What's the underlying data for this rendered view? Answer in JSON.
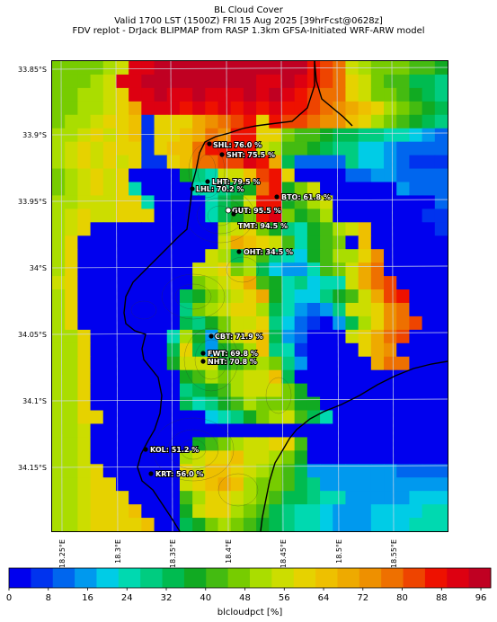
{
  "header": {
    "line1": "BL Cloud Cover",
    "line2": "Valid 1700 LST (1500Z) FRI 15 Aug 2025 [39hrFcst@0628z]",
    "line3": "FDV replot - DrJack BLIPMAP from RASP 1.3km GFSA-Initiated WRF-ARW model"
  },
  "map": {
    "lat_ticks": [
      "33.85°S",
      "33.9°S",
      "33.95°S",
      "34°S",
      "34.05°S",
      "34.1°S",
      "34.15°S"
    ],
    "lon_ticks": [
      "18.25°E",
      "18.3°E",
      "18.35°E",
      "18.4°E",
      "18.45°E",
      "18.5°E",
      "18.55°E"
    ],
    "stations": [
      {
        "label": "SHL: 76.0 %",
        "value": 76.0
      },
      {
        "label": "SHT: 75.5 %",
        "value": 75.5
      },
      {
        "label": "LHT: 79.5 %",
        "value": 79.5
      },
      {
        "label": "LHL: 70.2 %",
        "value": 70.2
      },
      {
        "label": "BTO: 61.8 %",
        "value": 61.8
      },
      {
        "label": "GUT: 95.5 %",
        "value": 95.5
      },
      {
        "label": "TMT: 94.5 %",
        "value": 94.5
      },
      {
        "label": "OHT: 34.5 %",
        "value": 34.5
      },
      {
        "label": "CBT: 71.9 %",
        "value": 71.9
      },
      {
        "label": "FWT: 69.8 %",
        "value": 69.8
      },
      {
        "label": "NHT: 70.8 %",
        "value": 70.8
      },
      {
        "label": "KOL: 51.2 %",
        "value": 51.2
      },
      {
        "label": "KRT: 56.0 %",
        "value": 56.0
      }
    ]
  },
  "colorbar": {
    "label": "blcloudpct [%]",
    "ticks": [
      "0",
      "8",
      "16",
      "24",
      "32",
      "40",
      "48",
      "56",
      "64",
      "72",
      "80",
      "88",
      "96"
    ],
    "colors": [
      "#0000ee",
      "#0033ee",
      "#0066ee",
      "#0099ee",
      "#00cce6",
      "#00d9b0",
      "#00cc80",
      "#00bb50",
      "#11aa22",
      "#44bb11",
      "#77cc00",
      "#aadd00",
      "#ccdd00",
      "#e6d200",
      "#eec000",
      "#eeaa00",
      "#ee9000",
      "#ee7000",
      "#ee4400",
      "#ee1100",
      "#dd0011",
      "#c00022"
    ]
  }
}
